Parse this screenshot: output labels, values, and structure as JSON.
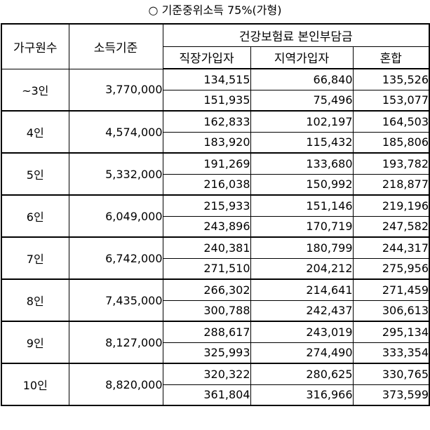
{
  "title": "○ 기준중위소득 75%(가형)",
  "headers": {
    "household_size": "가구원수",
    "income_standard": "소득기준",
    "premium_group": "건강보험료 본인부담금",
    "employee": "직장가입자",
    "regional": "지역가입자",
    "mixed": "혼합"
  },
  "rows": [
    {
      "size": "~3인",
      "income": "3,770,000",
      "a": [
        "134,515",
        "66,840",
        "135,526"
      ],
      "b": [
        "151,935",
        "75,496",
        "153,077"
      ]
    },
    {
      "size": "4인",
      "income": "4,574,000",
      "a": [
        "162,833",
        "102,197",
        "164,503"
      ],
      "b": [
        "183,920",
        "115,432",
        "185,806"
      ]
    },
    {
      "size": "5인",
      "income": "5,332,000",
      "a": [
        "191,269",
        "133,680",
        "193,782"
      ],
      "b": [
        "216,038",
        "150,992",
        "218,877"
      ]
    },
    {
      "size": "6인",
      "income": "6,049,000",
      "a": [
        "215,933",
        "151,146",
        "219,196"
      ],
      "b": [
        "243,896",
        "170,719",
        "247,582"
      ]
    },
    {
      "size": "7인",
      "income": "6,742,000",
      "a": [
        "240,381",
        "180,799",
        "244,317"
      ],
      "b": [
        "271,510",
        "204,212",
        "275,956"
      ]
    },
    {
      "size": "8인",
      "income": "7,435,000",
      "a": [
        "266,302",
        "214,641",
        "271,459"
      ],
      "b": [
        "300,788",
        "242,437",
        "306,613"
      ]
    },
    {
      "size": "9인",
      "income": "8,127,000",
      "a": [
        "288,617",
        "243,019",
        "295,134"
      ],
      "b": [
        "325,993",
        "274,490",
        "333,354"
      ]
    },
    {
      "size": "10인",
      "income": "8,820,000",
      "a": [
        "320,322",
        "280,625",
        "330,765"
      ],
      "b": [
        "361,804",
        "316,966",
        "373,599"
      ]
    }
  ]
}
